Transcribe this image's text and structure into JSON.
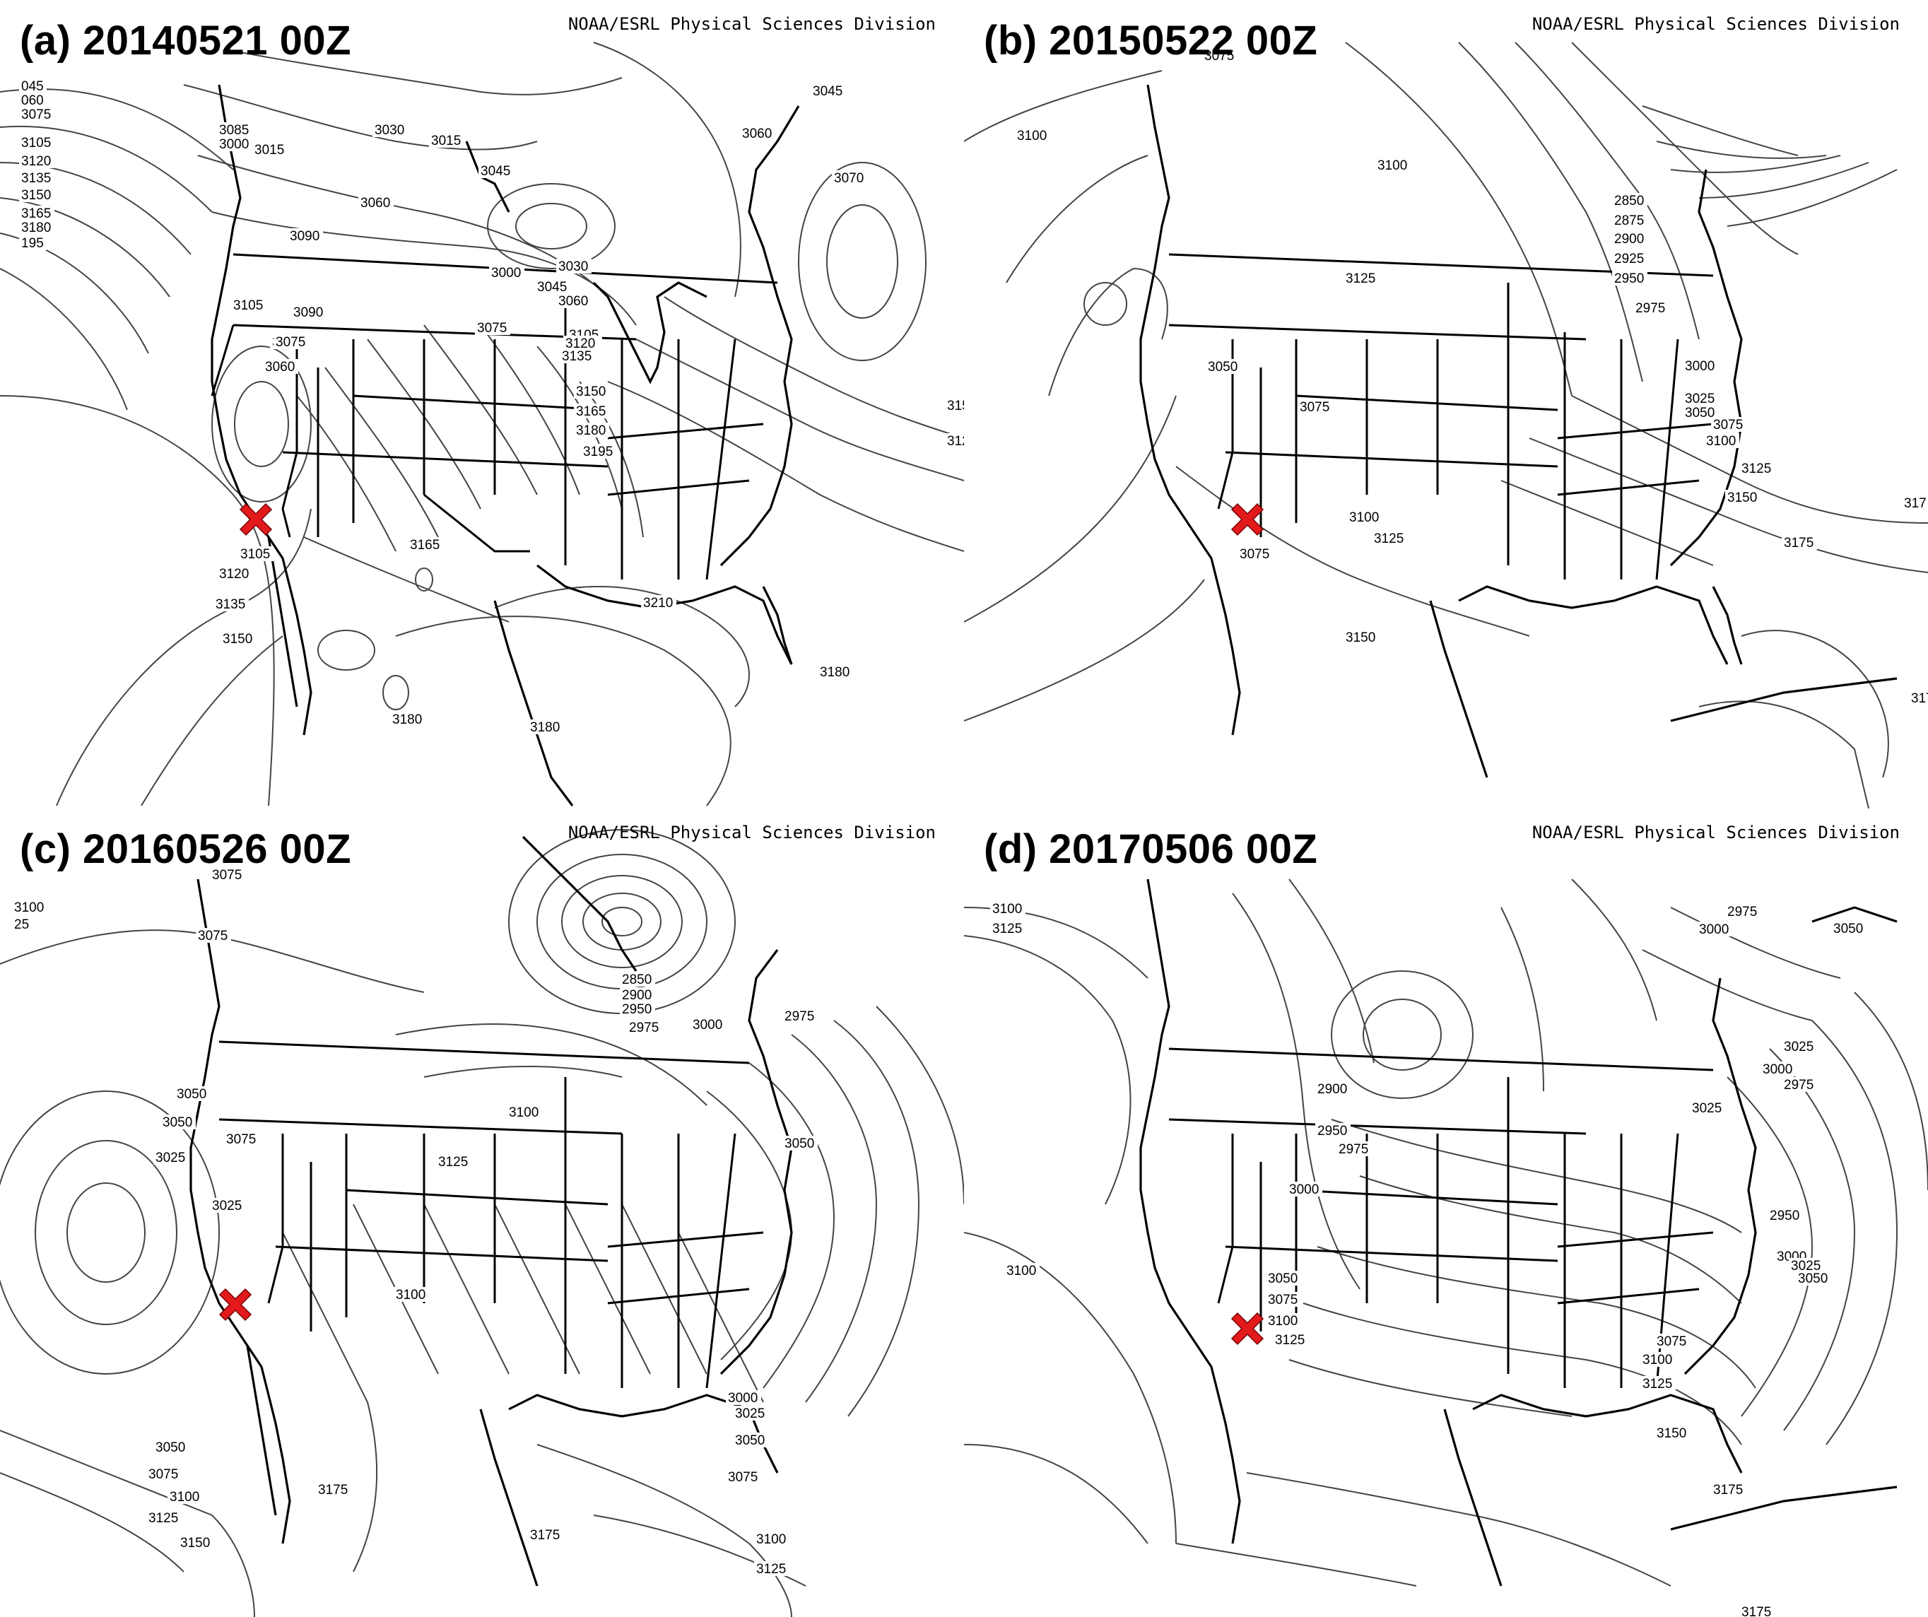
{
  "credit": "NOAA/ESRL Physical Sciences Division",
  "marker_color": "#e31a1c",
  "panels": [
    {
      "title": "(a) 20140521 00Z",
      "contour_labels": [
        "045",
        "060",
        "3075",
        "3105",
        "3120",
        "3135",
        "3150",
        "3165",
        "3180",
        "195",
        "3085",
        "3000",
        "3015",
        "3030",
        "3015",
        "3060",
        "3045",
        "3060",
        "3045",
        "3070",
        "3090",
        "3105",
        "3090",
        "3075",
        "3060",
        "3000",
        "3030",
        "3045",
        "3060",
        "3105",
        "3120",
        "3135",
        "3075",
        "3075",
        "3150",
        "3165",
        "3180",
        "3195",
        "3165",
        "3105",
        "3120",
        "3135",
        "3150",
        "3210",
        "3180",
        "3180",
        "3180",
        "312",
        "315"
      ]
    },
    {
      "title": "(b) 20150522 00Z",
      "contour_labels": [
        "3075",
        "3100",
        "3100",
        "2850",
        "2875",
        "2900",
        "2925",
        "2950",
        "2975",
        "3125",
        "3050",
        "3075",
        "3000",
        "3025",
        "3050",
        "3075",
        "3100",
        "3125",
        "3100",
        "3125",
        "3150",
        "3075",
        "3175",
        "3150",
        "317",
        "3175"
      ]
    },
    {
      "title": "(c) 20160526 00Z",
      "contour_labels": [
        "3075",
        "3100",
        "25",
        "3075",
        "3025",
        "3050",
        "3075",
        "2850",
        "2900",
        "2950",
        "2975",
        "3000",
        "2975",
        "3100",
        "3125",
        "3050",
        "3050",
        "3025",
        "3100",
        "3000",
        "3025",
        "3050",
        "3075",
        "3050",
        "3075",
        "3100",
        "3125",
        "3150",
        "3175",
        "3100",
        "3125",
        "3175"
      ]
    },
    {
      "title": "(d) 20170506 00Z",
      "contour_labels": [
        "3100",
        "3125",
        "2975",
        "3000",
        "3050",
        "3025",
        "3000",
        "2975",
        "2900",
        "2950",
        "2975",
        "3000",
        "3025",
        "2950",
        "3000",
        "3025",
        "3050",
        "3050",
        "3075",
        "3100",
        "3125",
        "3075",
        "3100",
        "3125",
        "3150",
        "3100",
        "3175",
        "3175"
      ]
    }
  ]
}
